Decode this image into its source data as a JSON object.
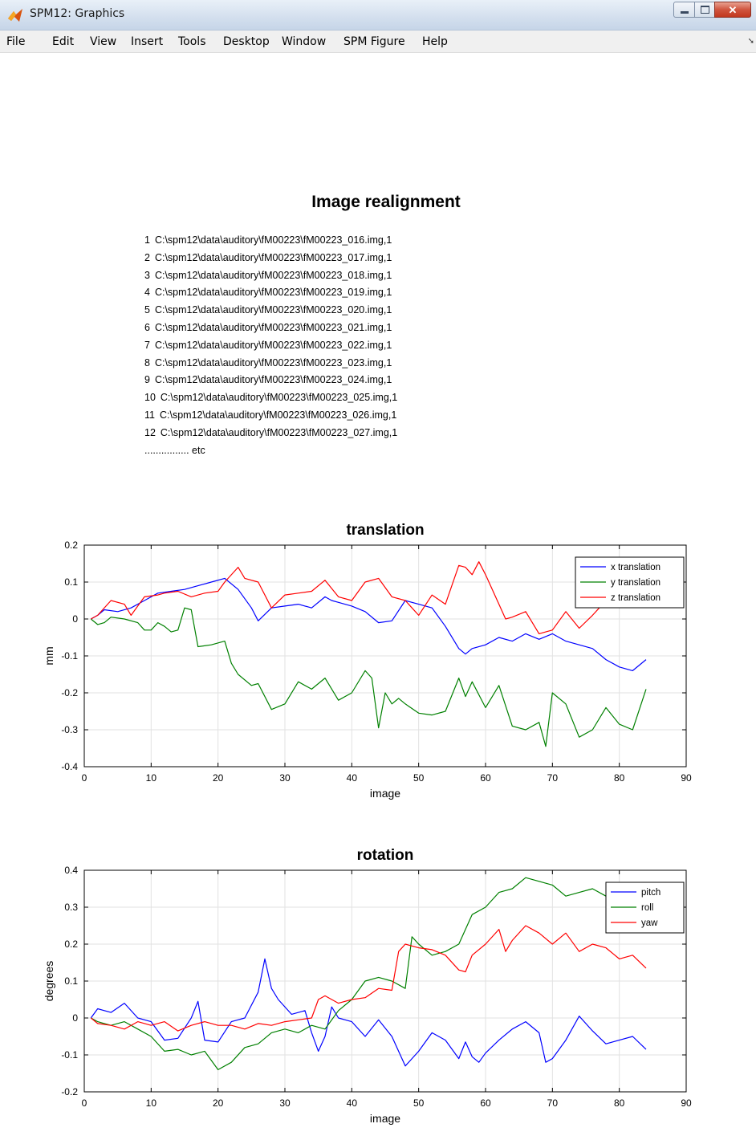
{
  "window": {
    "title": "SPM12: Graphics",
    "icon": "matlab-icon",
    "controls": [
      "minimize-icon",
      "maximize-icon",
      "close-icon"
    ]
  },
  "menu": [
    "File",
    "Edit",
    "View",
    "Insert",
    "Tools",
    "Desktop",
    "Window",
    "SPM Figure",
    "Help"
  ],
  "figure": {
    "title": "Image realignment",
    "files": [
      {
        "num": "1",
        "path": "C:\\spm12\\data\\auditory\\fM00223\\fM00223_016.img,1"
      },
      {
        "num": "2",
        "path": "C:\\spm12\\data\\auditory\\fM00223\\fM00223_017.img,1"
      },
      {
        "num": "3",
        "path": "C:\\spm12\\data\\auditory\\fM00223\\fM00223_018.img,1"
      },
      {
        "num": "4",
        "path": "C:\\spm12\\data\\auditory\\fM00223\\fM00223_019.img,1"
      },
      {
        "num": "5",
        "path": "C:\\spm12\\data\\auditory\\fM00223\\fM00223_020.img,1"
      },
      {
        "num": "6",
        "path": "C:\\spm12\\data\\auditory\\fM00223\\fM00223_021.img,1"
      },
      {
        "num": "7",
        "path": "C:\\spm12\\data\\auditory\\fM00223\\fM00223_022.img,1"
      },
      {
        "num": "8",
        "path": "C:\\spm12\\data\\auditory\\fM00223\\fM00223_023.img,1"
      },
      {
        "num": "9",
        "path": "C:\\spm12\\data\\auditory\\fM00223\\fM00223_024.img,1"
      },
      {
        "num": "10",
        "path": "C:\\spm12\\data\\auditory\\fM00223\\fM00223_025.img,1"
      },
      {
        "num": "11",
        "path": "C:\\spm12\\data\\auditory\\fM00223\\fM00223_026.img,1"
      },
      {
        "num": "12",
        "path": "C:\\spm12\\data\\auditory\\fM00223\\fM00223_027.img,1"
      }
    ],
    "etc": "................ etc"
  },
  "chart_data": [
    {
      "type": "line",
      "title": "translation",
      "xlabel": "image",
      "ylabel": "mm",
      "xlim": [
        0,
        90
      ],
      "ylim": [
        -0.4,
        0.2
      ],
      "xticks": [
        0,
        10,
        20,
        30,
        40,
        50,
        60,
        70,
        80,
        90
      ],
      "yticks": [
        0.2,
        0.1,
        0,
        -0.1,
        -0.2,
        -0.3,
        -0.4
      ],
      "ytick_labels": [
        "0.2",
        "0.1",
        "0",
        "-0.1",
        "-0.2",
        "-0.3",
        "-0.4"
      ],
      "grid": true,
      "legend": "top-right",
      "series": [
        {
          "name": "x translation",
          "color": "#0000ff",
          "x": [
            1,
            2,
            3,
            5,
            7,
            9,
            11,
            13,
            15,
            17,
            19,
            21,
            23,
            25,
            26,
            28,
            30,
            32,
            34,
            36,
            37,
            38,
            40,
            42,
            44,
            46,
            48,
            50,
            52,
            54,
            56,
            57,
            58,
            60,
            62,
            64,
            66,
            68,
            70,
            72,
            74,
            76,
            78,
            80,
            82,
            84
          ],
          "y": [
            0,
            0.01,
            0.025,
            0.02,
            0.03,
            0.05,
            0.07,
            0.075,
            0.08,
            0.09,
            0.1,
            0.11,
            0.08,
            0.03,
            -0.005,
            0.03,
            0.035,
            0.04,
            0.03,
            0.06,
            0.05,
            0.045,
            0.035,
            0.02,
            -0.01,
            -0.005,
            0.05,
            0.04,
            0.03,
            -0.02,
            -0.08,
            -0.095,
            -0.08,
            -0.07,
            -0.05,
            -0.06,
            -0.04,
            -0.055,
            -0.04,
            -0.06,
            -0.07,
            -0.08,
            -0.11,
            -0.13,
            -0.14,
            -0.11
          ]
        },
        {
          "name": "y translation",
          "color": "#008000",
          "x": [
            1,
            2,
            3,
            4,
            6,
            8,
            9,
            10,
            11,
            12,
            13,
            14,
            15,
            16,
            17,
            19,
            21,
            22,
            23,
            25,
            26,
            28,
            30,
            32,
            34,
            36,
            38,
            40,
            42,
            43,
            44,
            45,
            46,
            47,
            48,
            50,
            52,
            54,
            56,
            57,
            58,
            60,
            62,
            64,
            66,
            68,
            69,
            70,
            72,
            74,
            76,
            78,
            80,
            82,
            84
          ],
          "y": [
            0,
            -0.015,
            -0.01,
            0.005,
            0.0,
            -0.01,
            -0.03,
            -0.03,
            -0.01,
            -0.02,
            -0.035,
            -0.03,
            0.03,
            0.025,
            -0.075,
            -0.07,
            -0.06,
            -0.12,
            -0.15,
            -0.18,
            -0.175,
            -0.245,
            -0.23,
            -0.17,
            -0.19,
            -0.16,
            -0.22,
            -0.2,
            -0.14,
            -0.16,
            -0.295,
            -0.2,
            -0.23,
            -0.215,
            -0.23,
            -0.255,
            -0.26,
            -0.25,
            -0.16,
            -0.21,
            -0.17,
            -0.24,
            -0.18,
            -0.29,
            -0.3,
            -0.28,
            -0.345,
            -0.2,
            -0.23,
            -0.32,
            -0.3,
            -0.24,
            -0.285,
            -0.3,
            -0.19
          ]
        },
        {
          "name": "z translation",
          "color": "#ff0000",
          "x": [
            1,
            2,
            4,
            6,
            7,
            9,
            11,
            12,
            14,
            16,
            18,
            20,
            21,
            23,
            24,
            26,
            28,
            30,
            32,
            34,
            36,
            38,
            40,
            42,
            44,
            46,
            48,
            50,
            52,
            54,
            56,
            57,
            58,
            59,
            60,
            62,
            63,
            64,
            66,
            68,
            69,
            70,
            72,
            74,
            76,
            77
          ],
          "y": [
            0,
            0.01,
            0.05,
            0.04,
            0.01,
            0.06,
            0.065,
            0.07,
            0.075,
            0.06,
            0.07,
            0.075,
            0.1,
            0.14,
            0.11,
            0.1,
            0.03,
            0.065,
            0.07,
            0.075,
            0.105,
            0.06,
            0.05,
            0.1,
            0.11,
            0.06,
            0.05,
            0.01,
            0.065,
            0.04,
            0.145,
            0.14,
            0.12,
            0.155,
            0.12,
            0.04,
            0.0,
            0.005,
            0.02,
            -0.04,
            -0.035,
            -0.03,
            0.02,
            -0.025,
            0.01,
            0.03
          ]
        }
      ]
    },
    {
      "type": "line",
      "title": "rotation",
      "xlabel": "image",
      "ylabel": "degrees",
      "xlim": [
        0,
        90
      ],
      "ylim": [
        -0.2,
        0.4
      ],
      "xticks": [
        0,
        10,
        20,
        30,
        40,
        50,
        60,
        70,
        80,
        90
      ],
      "yticks": [
        0.4,
        0.3,
        0.2,
        0.1,
        0,
        -0.1,
        -0.2
      ],
      "ytick_labels": [
        "0.4",
        "0.3",
        "0.2",
        "0.1",
        "0",
        "-0.1",
        "-0.2"
      ],
      "grid": true,
      "legend": "top-right",
      "series": [
        {
          "name": "pitch",
          "color": "#0000ff",
          "x": [
            1,
            2,
            4,
            6,
            8,
            10,
            12,
            14,
            16,
            17,
            18,
            20,
            22,
            24,
            26,
            27,
            28,
            29,
            31,
            33,
            34,
            35,
            36,
            37,
            38,
            40,
            42,
            44,
            46,
            48,
            50,
            52,
            54,
            56,
            57,
            58,
            59,
            60,
            62,
            64,
            66,
            68,
            69,
            70,
            72,
            74,
            76,
            78,
            80,
            82,
            84
          ],
          "y": [
            0,
            0.025,
            0.015,
            0.04,
            0.0,
            -0.01,
            -0.06,
            -0.055,
            0.0,
            0.045,
            -0.06,
            -0.065,
            -0.01,
            0.0,
            0.07,
            0.16,
            0.08,
            0.05,
            0.01,
            0.02,
            -0.04,
            -0.09,
            -0.05,
            0.03,
            0.0,
            -0.01,
            -0.05,
            -0.005,
            -0.05,
            -0.13,
            -0.09,
            -0.04,
            -0.06,
            -0.11,
            -0.065,
            -0.105,
            -0.12,
            -0.095,
            -0.06,
            -0.03,
            -0.01,
            -0.04,
            -0.12,
            -0.11,
            -0.06,
            0.005,
            -0.035,
            -0.07,
            -0.06,
            -0.05,
            -0.085
          ]
        },
        {
          "name": "roll",
          "color": "#008000",
          "x": [
            1,
            2,
            4,
            6,
            8,
            10,
            12,
            14,
            16,
            18,
            20,
            22,
            24,
            26,
            28,
            30,
            32,
            34,
            36,
            38,
            40,
            42,
            44,
            46,
            48,
            49,
            50,
            52,
            54,
            56,
            58,
            60,
            62,
            64,
            66,
            68,
            70,
            72,
            74,
            76,
            78,
            80,
            82,
            84
          ],
          "y": [
            0,
            -0.01,
            -0.02,
            -0.01,
            -0.03,
            -0.05,
            -0.09,
            -0.085,
            -0.1,
            -0.09,
            -0.14,
            -0.12,
            -0.08,
            -0.07,
            -0.04,
            -0.03,
            -0.04,
            -0.02,
            -0.03,
            0.02,
            0.05,
            0.1,
            0.11,
            0.1,
            0.08,
            0.22,
            0.2,
            0.17,
            0.18,
            0.2,
            0.28,
            0.3,
            0.34,
            0.35,
            0.38,
            0.37,
            0.36,
            0.33,
            0.34,
            0.35,
            0.33,
            0.32,
            0.31,
            0.3
          ]
        },
        {
          "name": "yaw",
          "color": "#ff0000",
          "x": [
            1,
            2,
            4,
            6,
            8,
            10,
            12,
            14,
            16,
            18,
            20,
            22,
            24,
            26,
            28,
            30,
            32,
            34,
            35,
            36,
            38,
            40,
            42,
            44,
            46,
            47,
            48,
            50,
            52,
            54,
            56,
            57,
            58,
            60,
            62,
            63,
            64,
            66,
            68,
            70,
            72,
            74,
            76,
            78,
            80,
            82,
            84
          ],
          "y": [
            0,
            -0.015,
            -0.02,
            -0.03,
            -0.01,
            -0.02,
            -0.01,
            -0.035,
            -0.02,
            -0.01,
            -0.02,
            -0.02,
            -0.03,
            -0.015,
            -0.02,
            -0.01,
            -0.005,
            0.0,
            0.05,
            0.06,
            0.04,
            0.05,
            0.055,
            0.08,
            0.075,
            0.18,
            0.2,
            0.19,
            0.185,
            0.17,
            0.13,
            0.125,
            0.17,
            0.2,
            0.24,
            0.18,
            0.21,
            0.25,
            0.23,
            0.2,
            0.23,
            0.18,
            0.2,
            0.19,
            0.16,
            0.17,
            0.135
          ]
        }
      ]
    }
  ]
}
